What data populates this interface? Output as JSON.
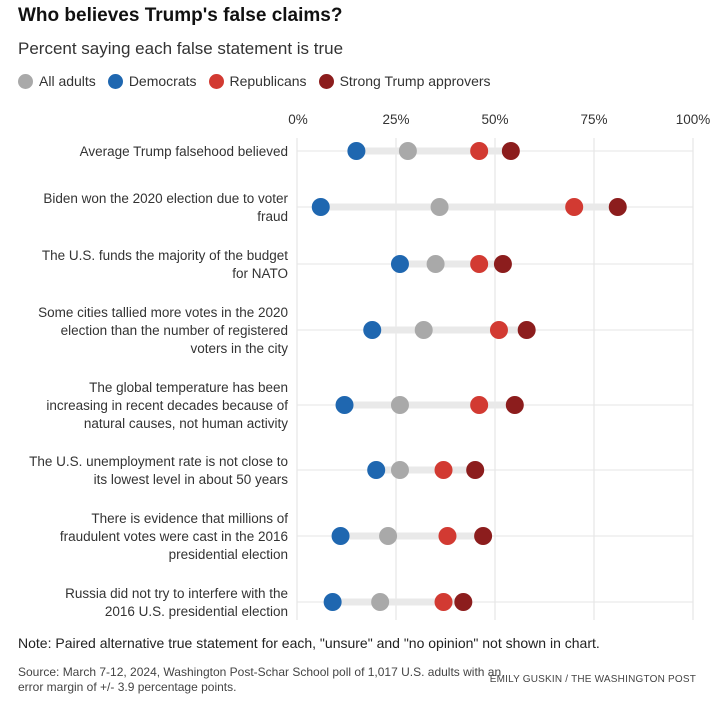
{
  "title": "Who believes Trump's false claims?",
  "subtitle": "Percent saying each false statement is true",
  "legend": [
    {
      "label": "All adults",
      "color": "#a9a9a9"
    },
    {
      "label": "Democrats",
      "color": "#1f67b0"
    },
    {
      "label": "Republicans",
      "color": "#d23a32"
    },
    {
      "label": "Strong Trump approvers",
      "color": "#8c1d1d"
    }
  ],
  "note": "Note: Paired alternative true statement for each, \"unsure\" and \"no opinion\" not shown in chart.",
  "source": "Source: March 7-12, 2024, Washington Post-Schar School poll of 1,017 U.S. adults with an error margin of +/- 3.9 percentage points.",
  "credit": "EMILY GUSKIN / THE WASHINGTON POST",
  "chart_data": {
    "type": "dot",
    "xlim": [
      0,
      100
    ],
    "tick_labels": [
      "0%",
      "25%",
      "50%",
      "75%",
      "100%"
    ],
    "tick_values": [
      0,
      25,
      50,
      75,
      100
    ],
    "categories": [
      "Average Trump falsehood believed",
      "Biden won the 2020 election due to voter fraud",
      "The U.S. funds the majority of the budget for NATO",
      "Some cities tallied more votes in the 2020 election than the number of registered voters in the city",
      "The global temperature has been increasing in recent decades because of natural causes, not human activity",
      "The U.S. unemployment rate is not close to its lowest level in about 50 years",
      "There is evidence that millions of fraudulent votes were cast in the 2016 presidential election",
      "Russia did not try to interfere with the 2016 U.S. presidential election"
    ],
    "category_lines": [
      [
        "Average Trump falsehood believed"
      ],
      [
        "Biden won the 2020 election due to voter",
        "fraud"
      ],
      [
        "The U.S. funds the majority of the budget",
        "for NATO"
      ],
      [
        "Some cities tallied more votes in the 2020",
        "election than the number of registered",
        "voters in the city"
      ],
      [
        "The global temperature has been",
        "increasing in recent decades because of",
        "natural causes, not human activity"
      ],
      [
        "The U.S. unemployment rate is not close to",
        "its lowest level in about 50 years"
      ],
      [
        "There is evidence that millions of",
        "fraudulent votes were cast in the 2016",
        "presidential election"
      ],
      [
        "Russia did not try to interfere with the",
        "2016 U.S. presidential election"
      ]
    ],
    "series": [
      {
        "name": "All adults",
        "color": "#a9a9a9",
        "values": [
          28,
          36,
          35,
          32,
          26,
          26,
          23,
          21
        ]
      },
      {
        "name": "Democrats",
        "color": "#1f67b0",
        "values": [
          15,
          6,
          26,
          19,
          12,
          20,
          11,
          9
        ]
      },
      {
        "name": "Republicans",
        "color": "#d23a32",
        "values": [
          46,
          70,
          46,
          51,
          46,
          37,
          38,
          37
        ]
      },
      {
        "name": "Strong Trump approvers",
        "color": "#8c1d1d",
        "values": [
          54,
          81,
          52,
          58,
          55,
          45,
          47,
          42
        ]
      }
    ]
  }
}
